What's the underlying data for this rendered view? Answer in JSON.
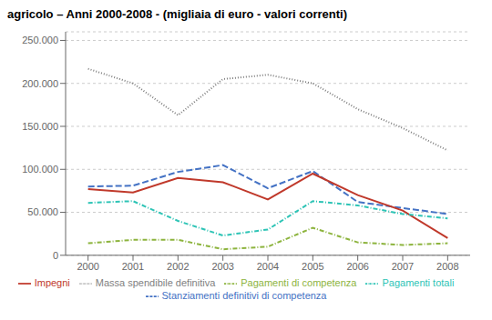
{
  "chart_data": {
    "type": "line",
    "title": "agricolo – Anni 2000-2008 - (migliaia di euro - valori correnti)",
    "x": [
      2000,
      2001,
      2002,
      2003,
      2004,
      2005,
      2006,
      2007,
      2008
    ],
    "xlim": [
      1999.5,
      2008.5
    ],
    "xticks": [
      2000,
      2001,
      2002,
      2003,
      2004,
      2005,
      2006,
      2007,
      2008
    ],
    "ylim": [
      0,
      260000
    ],
    "yticks": [
      0,
      {
        "value": 50000,
        "label": "50.000"
      },
      {
        "value": 100000,
        "label": "100.000"
      },
      {
        "value": 150000,
        "label": "150.000"
      },
      {
        "value": 200000,
        "label": "200.000"
      },
      {
        "value": 250000,
        "label": "250.000"
      }
    ],
    "grid": "y",
    "legend": "bottom",
    "series": [
      {
        "name": "Stanziamenti definitivi di competenza",
        "color": "#4472C4",
        "line_style": "dashed",
        "values": [
          80000,
          81000,
          97000,
          105000,
          78000,
          98000,
          62000,
          55000,
          48000
        ]
      },
      {
        "name": "Impegni",
        "color": "#C0392B",
        "line_style": "solid",
        "values": [
          77000,
          73000,
          90000,
          85000,
          65000,
          95000,
          70000,
          52000,
          20000
        ]
      },
      {
        "name": "Pagamenti di competenza",
        "color": "#8DB43E",
        "line_style": "dashdot",
        "values": [
          14000,
          18000,
          18000,
          7000,
          10000,
          32000,
          15000,
          12000,
          14000
        ]
      },
      {
        "name": "Massa spendibile definitiva",
        "color": "#7F7F7F",
        "line_style": "dotted",
        "values": [
          217000,
          200000,
          163000,
          205000,
          210000,
          200000,
          170000,
          148000,
          122000
        ]
      },
      {
        "name": "Pagamenti totali",
        "color": "#2EC4B6",
        "line_style": "dashdot",
        "values": [
          61000,
          63000,
          40000,
          23000,
          30000,
          63000,
          58000,
          48000,
          43000
        ]
      }
    ]
  }
}
